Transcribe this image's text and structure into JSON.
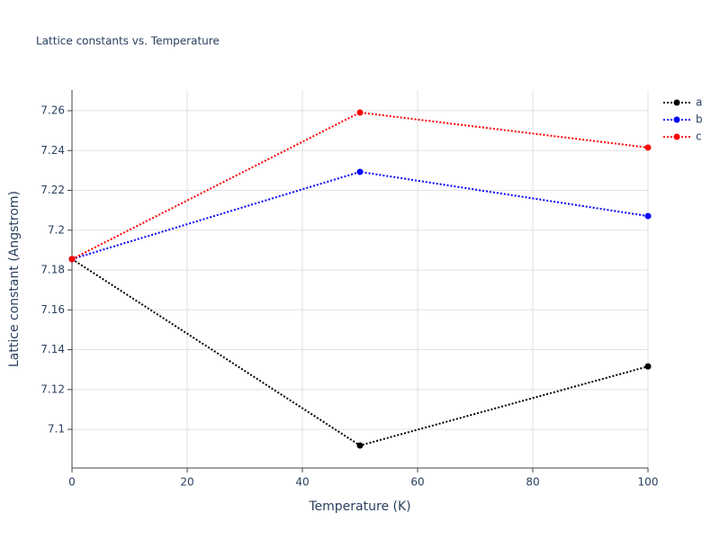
{
  "chart_data": {
    "type": "line",
    "title": "Lattice constants vs. Temperature",
    "x_label": "Temperature (K)",
    "y_label": "Lattice constant (Angstrom)",
    "x": [
      0,
      50,
      100
    ],
    "series": [
      {
        "name": "a",
        "color": "#000000",
        "values": [
          7.1855,
          7.0919,
          7.1316
        ]
      },
      {
        "name": "b",
        "color": "#0000ff",
        "values": [
          7.1855,
          7.2293,
          7.2071
        ]
      },
      {
        "name": "c",
        "color": "#ff0000",
        "values": [
          7.1855,
          7.2591,
          7.2415
        ]
      }
    ],
    "xlim": [
      0,
      100
    ],
    "xticks": [
      0,
      20,
      40,
      60,
      80,
      100
    ],
    "ylim": [
      7.0806,
      7.2704
    ],
    "yticks": [
      7.1,
      7.12,
      7.14,
      7.16,
      7.18,
      7.2,
      7.22,
      7.24,
      7.26
    ],
    "grid": true,
    "legend": "top-right"
  }
}
